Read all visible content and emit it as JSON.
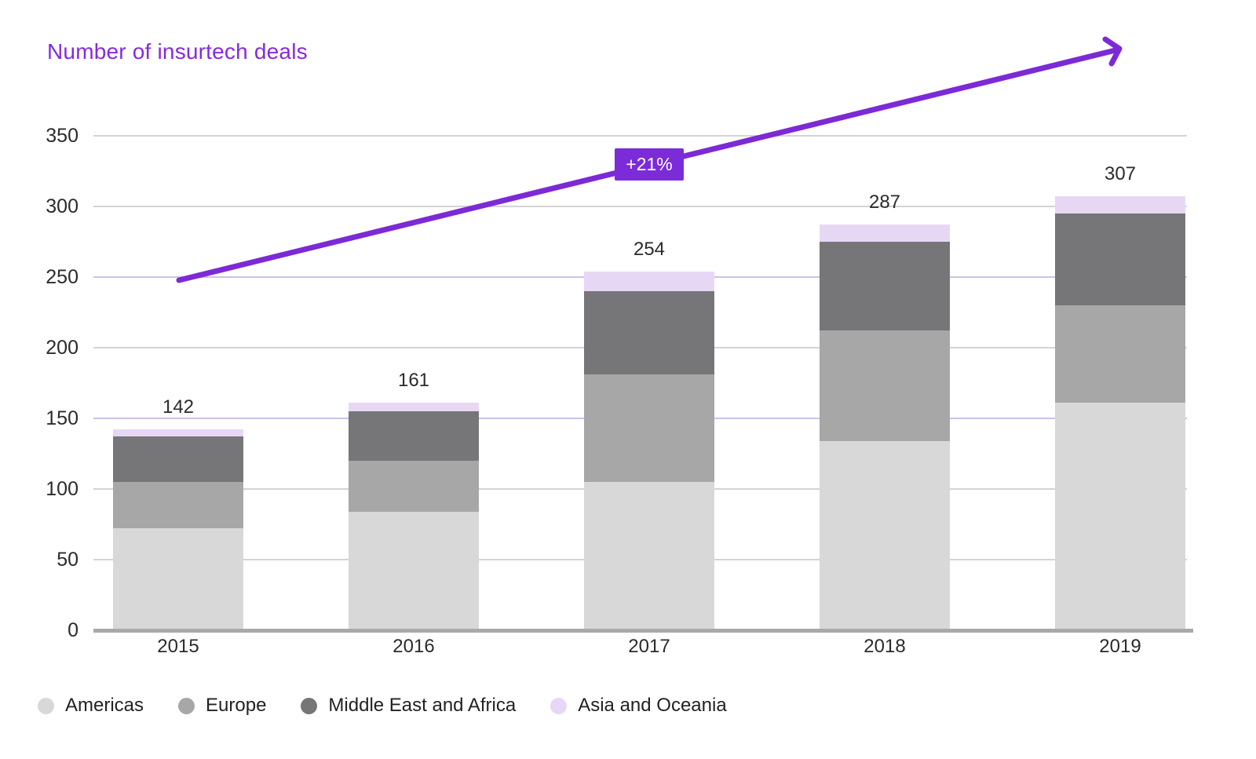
{
  "chart_data": {
    "type": "bar",
    "stacked": true,
    "title": "Number of insurtech deals",
    "categories": [
      "2015",
      "2016",
      "2017",
      "2018",
      "2019"
    ],
    "series": [
      {
        "name": "Americas",
        "color": "#d8d8d8",
        "values": [
          72,
          84,
          105,
          134,
          161
        ]
      },
      {
        "name": "Europe",
        "color": "#a7a7a7",
        "values": [
          33,
          36,
          76,
          78,
          69
        ]
      },
      {
        "name": "Middle East and Africa",
        "color": "#767678",
        "values": [
          32,
          35,
          59,
          63,
          65
        ]
      },
      {
        "name": "Asia and Oceania",
        "color": "#e6d8f5",
        "values": [
          5,
          6,
          14,
          12,
          12
        ]
      }
    ],
    "totals": [
      142,
      161,
      254,
      287,
      307
    ],
    "ylim": [
      0,
      350
    ],
    "yticks": [
      0,
      50,
      100,
      150,
      200,
      250,
      300,
      350
    ],
    "grid": true,
    "legend_position": "bottom",
    "annotation": {
      "label": "+21%"
    }
  },
  "colors": {
    "title": "#8729e0",
    "accent_line": "#7c2ad6",
    "badge_bg": "#7c2bd9",
    "badge_text": "#ffffff",
    "grid": "#d4d4d4",
    "grid_lavender": "#cfc0e8",
    "axis_line": "#a9a9a9",
    "text": "#2b2b2b"
  }
}
